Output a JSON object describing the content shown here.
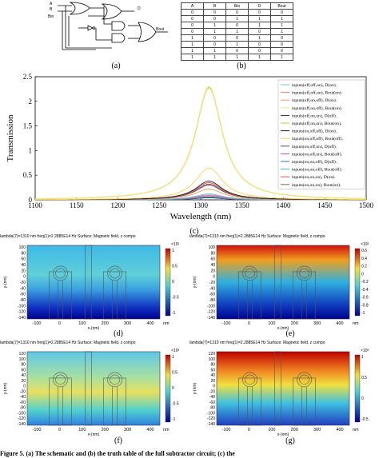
{
  "captions": {
    "a": "(a)",
    "b": "(b)",
    "c": "(c)",
    "d": "(d)",
    "e": "(e)",
    "f": "(f)",
    "g": "(g)"
  },
  "circuit": {
    "labels": [
      "A",
      "B",
      "Bin",
      "D",
      "Bout"
    ]
  },
  "truth_table": {
    "headers": [
      "A",
      "B",
      "Bin",
      "D",
      "Bout"
    ],
    "rows": [
      [
        "0",
        "0",
        "0",
        "0",
        "0"
      ],
      [
        "0",
        "0",
        "1",
        "1",
        "1"
      ],
      [
        "0",
        "1",
        "0",
        "1",
        "1"
      ],
      [
        "0",
        "1",
        "1",
        "0",
        "1"
      ],
      [
        "1",
        "0",
        "0",
        "1",
        "0"
      ],
      [
        "1",
        "0",
        "1",
        "0",
        "0"
      ],
      [
        "1",
        "1",
        "0",
        "0",
        "0"
      ],
      [
        "1",
        "1",
        "1",
        "1",
        "1"
      ]
    ]
  },
  "chart_data": {
    "type": "line",
    "xlabel": "Wavelength (nm)",
    "ylabel": "Transmission",
    "xlim": [
      1100,
      1500
    ],
    "ylim": [
      0,
      2.5
    ],
    "xticks": [
      "1100",
      "1150",
      "1200",
      "1250",
      "1300",
      "1350",
      "1400",
      "1450",
      "1500"
    ],
    "yticks": [
      "0",
      "0.5",
      "1",
      "1.5",
      "2",
      "2.5"
    ],
    "grid": false,
    "legend_position": "right",
    "center": 1310,
    "series": [
      {
        "name": "inputs(off,off,on), D(on).",
        "color": "#5ec8e6",
        "peak": 0.12
      },
      {
        "name": "inputs(off,off,on), Bout(on).",
        "color": "#e67a7a",
        "peak": 0.1
      },
      {
        "name": "inputs(off,on,off), D(on).",
        "color": "#e6a050",
        "peak": 0.22
      },
      {
        "name": "inputs(off,on,off), Bout(on).",
        "color": "#f0e68c",
        "peak": 2.3
      },
      {
        "name": "inputs(off,on,on), D(off).",
        "color": "#2b2b2b",
        "peak": 0.05
      },
      {
        "name": "inputs(off,on,on), Bout(on).",
        "color": "#c8c832",
        "peak": 2.28
      },
      {
        "name": "inputs(on,off,off), D(on).",
        "color": "#1a1a1a",
        "peak": 0.38
      },
      {
        "name": "inputs(on,off,off), Bout(off).",
        "color": "#ffd04a",
        "peak": 0.65
      },
      {
        "name": "inputs(on,off,on), D(off).",
        "color": "#6a3a8a",
        "peak": 0.3
      },
      {
        "name": "inputs(on,off,on), Bout(off).",
        "color": "#d040c0",
        "peak": 0.08
      },
      {
        "name": "inputs(on,on,off), D(off).",
        "color": "#3070c0",
        "peak": 0.04
      },
      {
        "name": "inputs(on,on,off), Bout(off).",
        "color": "#40c0b0",
        "peak": 0.06
      },
      {
        "name": "inputs(on,on,on), D(on).",
        "color": "#e05050",
        "peak": 0.35
      },
      {
        "name": "inputs(on,on,on), Bout(on).",
        "color": "#8a6a40",
        "peak": 0.32
      }
    ]
  },
  "field_plots": [
    {
      "id": "d",
      "header": "lambda(7)=1310 nm freq(1)=2.2885E14 Hz Surface: Magnetic field, z compo",
      "colorbar": "×10³",
      "colorbar_ticks": [
        "1",
        "0.5",
        "0",
        "-0.5",
        "-1"
      ],
      "xlabel": "x-(nm)",
      "unit": "nm",
      "xticks": [
        "-100",
        "0",
        "100",
        "200",
        "300",
        "400"
      ],
      "yticks": [
        "100",
        "80",
        "60",
        "40",
        "20",
        "0",
        "-20",
        "-40",
        "-60",
        "-80",
        "-100",
        "-120",
        "-140"
      ],
      "ylabel": "y-(nm)"
    },
    {
      "id": "e",
      "header": "lambda(7)=1310 nm freq(1)=2.2885E14 Hz Surface: Magnetic field, z compo",
      "colorbar": "×10³",
      "colorbar_ticks": [
        "0.6",
        "0.4",
        "0.2",
        "0",
        "-0.2",
        "-0.4",
        "-0.6",
        "-0.8",
        "-1"
      ],
      "xlabel": "x-(nm)",
      "unit": "nm",
      "xticks": [
        "-100",
        "0",
        "100",
        "200",
        "300",
        "400"
      ],
      "yticks": [
        "100",
        "80",
        "60",
        "40",
        "20",
        "0",
        "-20",
        "-40",
        "-60",
        "-80",
        "-100",
        "-120",
        "-140"
      ],
      "ylabel": "y-(nm)"
    },
    {
      "id": "f",
      "header": "lambda(7)=1310 nm freq(1)=2.2885E14 Hz Surface: Magnetic field, z compo",
      "colorbar": "×10³",
      "colorbar_ticks": [
        "1",
        "0.5",
        "0",
        "-0.5",
        "-1"
      ],
      "xlabel": "x-(nm)",
      "unit": "nm",
      "xticks": [
        "-100",
        "0",
        "100",
        "200",
        "300",
        "400"
      ],
      "yticks": [
        "120",
        "100",
        "80",
        "60",
        "40",
        "20",
        "0",
        "-20",
        "-40",
        "-60",
        "-80",
        "-100",
        "-120",
        "-140"
      ],
      "ylabel": "y-(nm)"
    },
    {
      "id": "g",
      "header": "lambda(7)=1310 nm freq(1)=2.2885E14 Hz Surface: Magnetic field, z compo",
      "colorbar": "×10³",
      "colorbar_ticks": [
        "1",
        "0.5",
        "0",
        "-0.5"
      ],
      "xlabel": "x-(nm)",
      "unit": "nm",
      "xticks": [
        "-100",
        "0",
        "100",
        "200",
        "300",
        "400"
      ],
      "yticks": [
        "120",
        "100",
        "80",
        "60",
        "40",
        "20",
        "0",
        "-20",
        "-40",
        "-60",
        "-80",
        "-100",
        "-120",
        "-140"
      ],
      "ylabel": "y-(nm)"
    }
  ],
  "footer": {
    "text": "Figure 5. (a) The schematic and (b) the truth table of the full subtractor circuit; (c) the"
  }
}
